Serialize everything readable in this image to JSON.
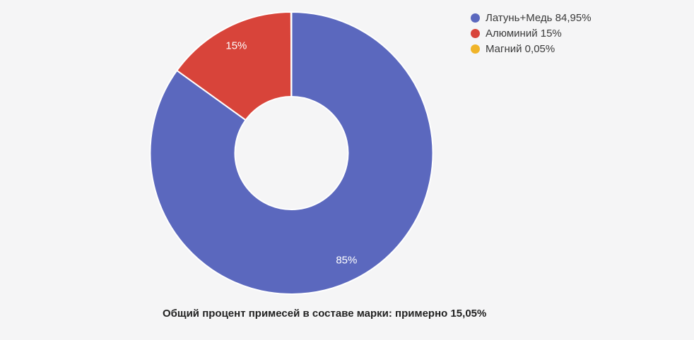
{
  "background": "#f5f5f6",
  "chart_data": {
    "type": "pie",
    "donut": true,
    "start_angle_deg": 0,
    "direction": "clockwise",
    "categories": [
      "Латунь+Медь",
      "Алюминий",
      "Магний"
    ],
    "values": [
      84.95,
      15,
      0.05
    ],
    "colors": [
      "#5b68be",
      "#d8443a",
      "#f0b429"
    ],
    "slice_labels": [
      "85%",
      "15%",
      ""
    ],
    "slice_border_color": "#ffffff",
    "legend": {
      "position": "right",
      "entries": [
        {
          "label": "Латунь+Медь 84,95%",
          "color": "#5b68be"
        },
        {
          "label": "Алюминий 15%",
          "color": "#d8443a"
        },
        {
          "label": "Магний 0,05%",
          "color": "#f0b429"
        }
      ]
    },
    "caption": "Общий процент примесей в составе марки: примерно 15,05%"
  }
}
